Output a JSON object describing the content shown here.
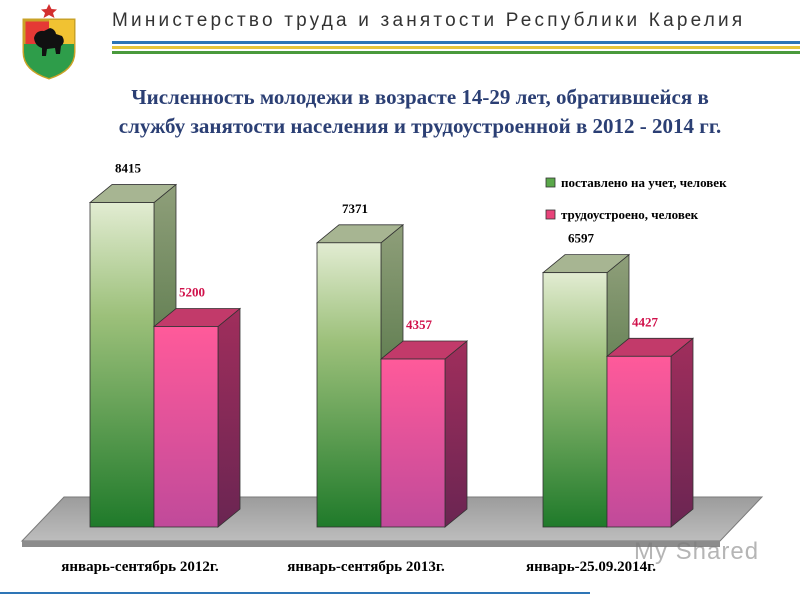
{
  "header": {
    "title": "Министерство труда и занятости Республики Карелия"
  },
  "slide": {
    "title_line1": "Численность молодежи в возрасте 14-29 лет, обратившейся в",
    "title_line2": "службу занятости населения и трудоустроенной в 2012 - 2014 гг."
  },
  "chart_data": {
    "type": "bar",
    "categories": [
      "январь-сентябрь 2012г.",
      "январь-сентябрь 2013г.",
      "январь-25.09.2014г."
    ],
    "series": [
      {
        "name": "поставлено на учет, человек",
        "values": [
          8415,
          7371,
          6597
        ],
        "color": "#4a9a3c"
      },
      {
        "name": "трудоустроено, человек",
        "values": [
          5200,
          4357,
          4427
        ],
        "color": "#e8437a"
      }
    ],
    "ylim": [
      0,
      9000
    ],
    "legend": "top-right",
    "grid": false,
    "label_colors": [
      "#000000",
      "#d0104a"
    ]
  },
  "colors": {
    "accent_blue": "#2e75b6",
    "accent_green": "#4a9a3c",
    "accent_yellow": "#e7c53a",
    "title_blue": "#2b3f74"
  },
  "watermark": {
    "text": "My Shared"
  }
}
